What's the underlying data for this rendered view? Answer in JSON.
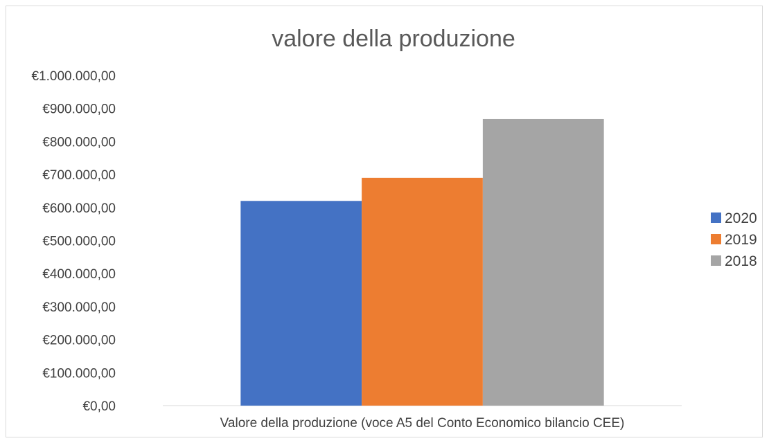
{
  "chart_data": {
    "type": "bar",
    "title": "valore della produzione",
    "categories": [
      "Valore della produzione (voce A5 del Conto Economico bilancio CEE)"
    ],
    "series": [
      {
        "name": "2020",
        "values": [
          620000
        ],
        "color": "#4472C4"
      },
      {
        "name": "2019",
        "values": [
          690000
        ],
        "color": "#ED7D31"
      },
      {
        "name": "2018",
        "values": [
          868000
        ],
        "color": "#A5A5A5"
      }
    ],
    "y_ticks": [
      "€0,00",
      "€100.000,00",
      "€200.000,00",
      "€300.000,00",
      "€400.000,00",
      "€500.000,00",
      "€600.000,00",
      "€700.000,00",
      "€800.000,00",
      "€900.000,00",
      "€1.000.000,00"
    ],
    "ylim": [
      0,
      1000000
    ],
    "grid": false,
    "legend_position": "right"
  }
}
